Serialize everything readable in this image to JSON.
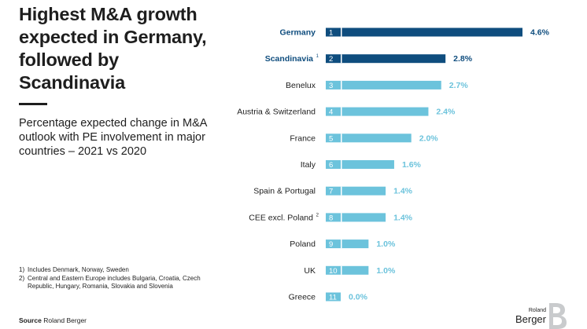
{
  "headline": "Highest M&A growth expected in Germany, followed by Scandinavia",
  "subtitle": "Percentage expected change in M&A outlook with PE involvement in major countries – 2021 vs 2020",
  "footnotes": [
    {
      "mark": "1)",
      "text": "Includes Denmark, Norway, Sweden"
    },
    {
      "mark": "2)",
      "text": "Central and Eastern Europe includes Bulgaria, Croatia, Czech Republic, Hungary, Romania, Slovakia and Slovenia"
    }
  ],
  "source": {
    "label": "Source",
    "text": "Roland Berger"
  },
  "logo": {
    "line1": "Roland",
    "line2": "Berger"
  },
  "colors": {
    "highlight": "#0f4d7e",
    "base": "#6cc3dc",
    "text_dark": "#1e1e1e"
  },
  "chart_data": {
    "type": "bar",
    "orientation": "horizontal",
    "title": "Percentage expected change in M&A outlook with PE involvement in major countries – 2021 vs 2020",
    "categories": [
      "Germany",
      "Scandinavia",
      "Benelux",
      "Austria & Switzerland",
      "France",
      "Italy",
      "Spain & Portugal",
      "CEE excl. Poland",
      "Poland",
      "UK",
      "Greece"
    ],
    "superscripts": [
      "",
      "1",
      "",
      "",
      "",
      "",
      "",
      "2",
      "",
      "",
      ""
    ],
    "ranks": [
      "1",
      "2",
      "3",
      "4",
      "5",
      "6",
      "7",
      "8",
      "9",
      "10",
      "11"
    ],
    "values": [
      4.6,
      2.8,
      2.7,
      2.4,
      2.0,
      1.6,
      1.4,
      1.4,
      1.0,
      1.0,
      0.0
    ],
    "value_labels": [
      "4.6%",
      "2.8%",
      "2.7%",
      "2.4%",
      "2.0%",
      "1.6%",
      "1.4%",
      "1.4%",
      "1.0%",
      "1.0%",
      "0.0%"
    ],
    "highlighted": [
      true,
      true,
      false,
      false,
      false,
      false,
      false,
      false,
      false,
      false,
      false
    ],
    "xlim": [
      0,
      4.6
    ],
    "unit": "%"
  }
}
